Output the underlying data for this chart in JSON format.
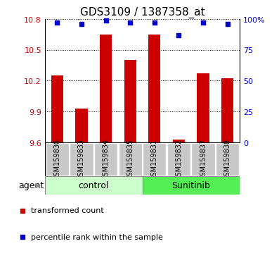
{
  "title": "GDS3109 / 1387358_at",
  "samples": [
    "GSM159830",
    "GSM159833",
    "GSM159834",
    "GSM159835",
    "GSM159831",
    "GSM159832",
    "GSM159837",
    "GSM159838"
  ],
  "bar_values": [
    10.25,
    9.93,
    10.65,
    10.4,
    10.65,
    9.63,
    10.27,
    10.22
  ],
  "percentile_values": [
    97,
    96,
    99,
    97,
    97,
    87,
    97,
    96
  ],
  "bar_color": "#cc0000",
  "dot_color": "#0000cc",
  "ylim_left": [
    9.6,
    10.8
  ],
  "ylim_right": [
    0,
    100
  ],
  "yticks_left": [
    9.6,
    9.9,
    10.2,
    10.5,
    10.8
  ],
  "yticks_right": [
    0,
    25,
    50,
    75,
    100
  ],
  "groups": [
    {
      "label": "control",
      "n": 4,
      "color": "#ccffcc"
    },
    {
      "label": "Sunitinib",
      "n": 4,
      "color": "#55ee55"
    }
  ],
  "group_row_label": "agent",
  "legend_items": [
    {
      "label": "transformed count",
      "color": "#cc0000"
    },
    {
      "label": "percentile rank within the sample",
      "color": "#0000cc"
    }
  ],
  "bar_width": 0.5,
  "sample_cell_color": "#c8c8c8",
  "title_fontsize": 11,
  "tick_fontsize": 8,
  "sample_fontsize": 7,
  "group_fontsize": 9,
  "legend_fontsize": 8
}
